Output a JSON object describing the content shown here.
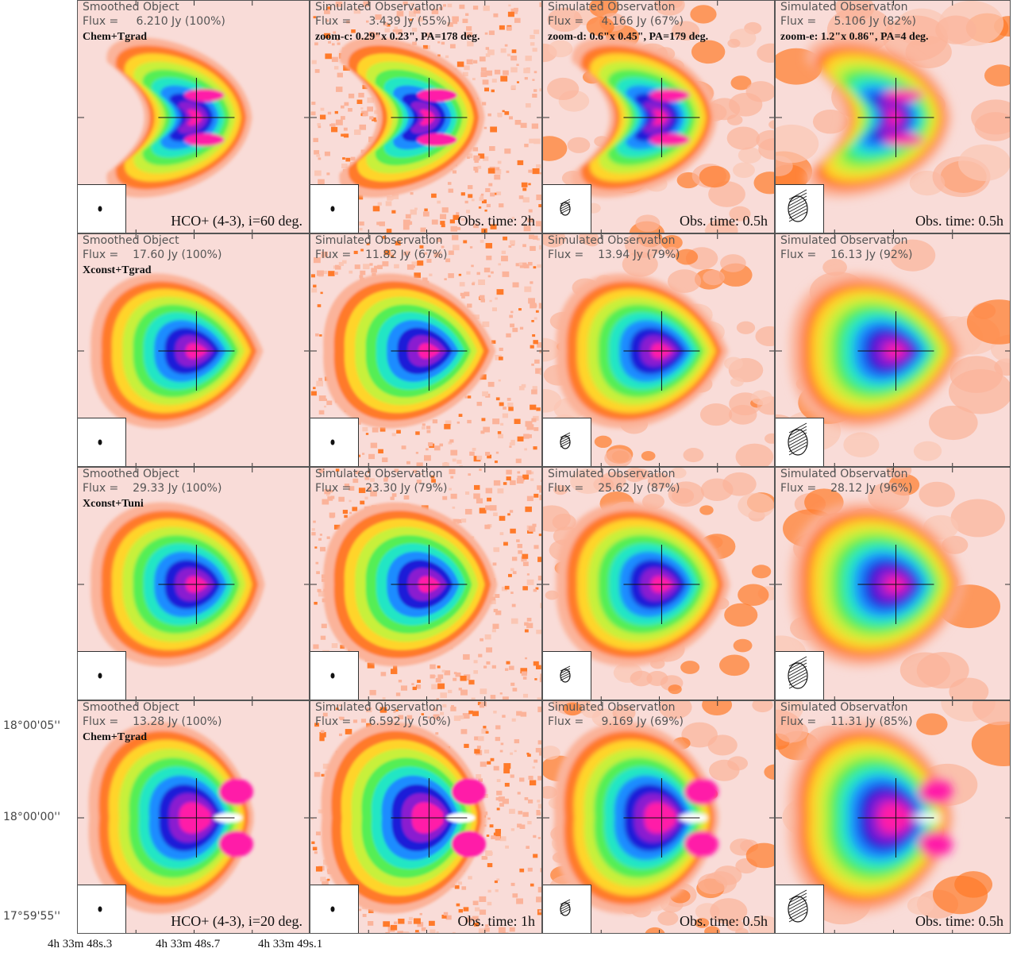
{
  "figure": {
    "rows": [
      {
        "cells": [
          {
            "header": "Smoothed Object",
            "flux": "Flux =     6.210 Jy (100%)",
            "label": "Chem+Tgrad",
            "bottom": "HCO+ (4-3), i=60 deg.",
            "beam": "dot",
            "shape": "horseshoe",
            "noise": "none"
          },
          {
            "header": "Simulated Observation",
            "flux": "Flux =     3.439 Jy (55%)",
            "label": "zoom-c: 0.29\"x 0.23\", PA=178 deg.",
            "bottom": "Obs. time: 2h",
            "beam": "dot",
            "shape": "horseshoe",
            "noise": "fine"
          },
          {
            "header": "Simulated Observation",
            "flux": "Flux =     4.166 Jy (67%)",
            "label": "zoom-d: 0.6\"x 0.45\", PA=179 deg.",
            "bottom": "Obs. time: 0.5h",
            "beam": "small-ellipse",
            "shape": "horseshoe",
            "noise": "medium"
          },
          {
            "header": "Simulated Observation",
            "flux": "Flux =     5.106 Jy (82%)",
            "label": "zoom-e: 1.2\"x 0.86\", PA=4 deg.",
            "bottom": "Obs. time: 0.5h",
            "beam": "large-ellipse",
            "shape": "horseshoe",
            "noise": "coarse"
          }
        ]
      },
      {
        "cells": [
          {
            "header": "Smoothed Object",
            "flux": "Flux =    17.60 Jy (100%)",
            "label": "Xconst+Tgrad",
            "bottom": "",
            "beam": "dot",
            "shape": "cone",
            "noise": "none"
          },
          {
            "header": "Simulated Observation",
            "flux": "Flux =    11.82 Jy (67%)",
            "label": "",
            "bottom": "",
            "beam": "dot",
            "shape": "cone",
            "noise": "fine"
          },
          {
            "header": "Simulated Observation",
            "flux": "Flux =    13.94 Jy (79%)",
            "label": "",
            "bottom": "",
            "beam": "small-ellipse",
            "shape": "cone",
            "noise": "medium"
          },
          {
            "header": "Simulated Observation",
            "flux": "Flux =    16.13 Jy (92%)",
            "label": "",
            "bottom": "",
            "beam": "large-ellipse",
            "shape": "cone",
            "noise": "coarse"
          }
        ]
      },
      {
        "cells": [
          {
            "header": "Smoothed Object",
            "flux": "Flux =    29.33 Jy (100%)",
            "label": "Xconst+Tuni",
            "bottom": "",
            "beam": "dot",
            "shape": "bullet",
            "noise": "none"
          },
          {
            "header": "Simulated Observation",
            "flux": "Flux =    23.30 Jy (79%)",
            "label": "",
            "bottom": "",
            "beam": "dot",
            "shape": "bullet",
            "noise": "fine"
          },
          {
            "header": "Simulated Observation",
            "flux": "Flux =    25.62 Jy (87%)",
            "label": "",
            "bottom": "",
            "beam": "small-ellipse",
            "shape": "bullet",
            "noise": "medium"
          },
          {
            "header": "Simulated Observation",
            "flux": "Flux =    28.12 Jy (96%)",
            "label": "",
            "bottom": "",
            "beam": "large-ellipse",
            "shape": "bullet",
            "noise": "coarse"
          }
        ]
      },
      {
        "cells": [
          {
            "header": "Smoothed Object",
            "flux": "Flux =    13.28 Jy (100%)",
            "label": "Chem+Tgrad",
            "bottom": "HCO+ (4-3), i=20 deg.",
            "beam": "dot",
            "shape": "twolobe",
            "noise": "none"
          },
          {
            "header": "Simulated Observation",
            "flux": "Flux =     6.592 Jy (50%)",
            "label": "",
            "bottom": "Obs. time: 1h",
            "beam": "dot",
            "shape": "twolobe",
            "noise": "fine"
          },
          {
            "header": "Simulated Observation",
            "flux": "Flux =     9.169 Jy (69%)",
            "label": "",
            "bottom": "Obs. time: 0.5h",
            "beam": "small-ellipse",
            "shape": "twolobe",
            "noise": "medium"
          },
          {
            "header": "Simulated Observation",
            "flux": "Flux =    11.31 Jy (85%)",
            "label": "",
            "bottom": "Obs. time: 0.5h",
            "beam": "large-ellipse",
            "shape": "twolobe",
            "noise": "coarse"
          }
        ]
      }
    ],
    "y_ticks": [
      "18°00'05''",
      "18°00'00''",
      "17°59'55''"
    ],
    "x_ticks": [
      "4h 33m 48s.3",
      "4h 33m 48s.7",
      "4h 33m 49s.1"
    ],
    "colors": {
      "background": "#f9dcd8",
      "rainbow": [
        "#f9dcd8",
        "#fbb39a",
        "#ff7a2a",
        "#ffd42a",
        "#c8f03a",
        "#55ee55",
        "#22e6c4",
        "#1e8cff",
        "#1a1ad8",
        "#8a1ad0",
        "#ff1aa8"
      ]
    }
  }
}
